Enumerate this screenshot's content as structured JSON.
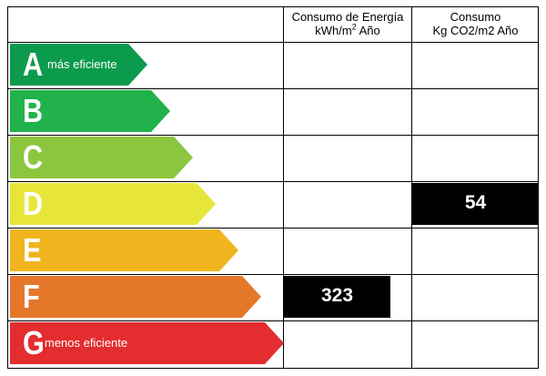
{
  "headers": {
    "energy_line1": "Consumo de Energía",
    "energy_line2_pre": "kWh/m",
    "energy_line2_sup": "2",
    "energy_line2_post": " Año",
    "co2_line1": "Consumo",
    "co2_line2": "Kg CO2/m2 Año"
  },
  "ratings": [
    {
      "letter": "A",
      "color": "#0c9a4c",
      "description": "más eficiente"
    },
    {
      "letter": "B",
      "color": "#21b24b",
      "description": ""
    },
    {
      "letter": "C",
      "color": "#8cc63f",
      "description": ""
    },
    {
      "letter": "D",
      "color": "#e8e53a",
      "description": ""
    },
    {
      "letter": "E",
      "color": "#f0b51e",
      "description": ""
    },
    {
      "letter": "F",
      "color": "#e5772b",
      "description": ""
    },
    {
      "letter": "G",
      "color": "#e42d2e",
      "description": "menos eficiente"
    }
  ],
  "values": {
    "energy": {
      "rating": "F",
      "value": "323"
    },
    "co2": {
      "rating": "D",
      "value": "54"
    }
  }
}
